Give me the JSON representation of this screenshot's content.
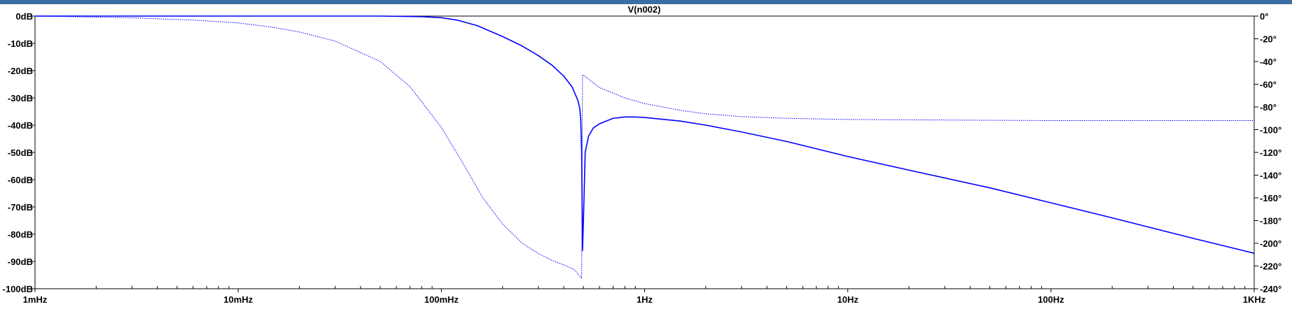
{
  "colors": {
    "trace": "#0000ff",
    "axis": "#000000",
    "background": "#ffffff",
    "frame": "#3a6ea5"
  },
  "chart_data": {
    "type": "line",
    "title": "V(n002)",
    "x_scale": "log",
    "xlim": [
      0.001,
      1000
    ],
    "x_ticks": [
      {
        "value": 0.001,
        "label": "1mHz"
      },
      {
        "value": 0.01,
        "label": "10mHz"
      },
      {
        "value": 0.1,
        "label": "100mHz"
      },
      {
        "value": 1,
        "label": "1Hz"
      },
      {
        "value": 10,
        "label": "10Hz"
      },
      {
        "value": 100,
        "label": "100Hz"
      },
      {
        "value": 1000,
        "label": "1KHz"
      }
    ],
    "ylim_left": [
      -100,
      0
    ],
    "y_ticks_left": [
      {
        "value": 0,
        "label": "0dB"
      },
      {
        "value": -10,
        "label": "-10dB"
      },
      {
        "value": -20,
        "label": "-20dB"
      },
      {
        "value": -30,
        "label": "-30dB"
      },
      {
        "value": -40,
        "label": "-40dB"
      },
      {
        "value": -50,
        "label": "-50dB"
      },
      {
        "value": -60,
        "label": "-60dB"
      },
      {
        "value": -70,
        "label": "-70dB"
      },
      {
        "value": -80,
        "label": "-80dB"
      },
      {
        "value": -90,
        "label": "-90dB"
      },
      {
        "value": -100,
        "label": "-100dB"
      }
    ],
    "ylim_right": [
      -240,
      0
    ],
    "y_ticks_right": [
      {
        "value": 0,
        "label": "0°"
      },
      {
        "value": -20,
        "label": "-20°"
      },
      {
        "value": -40,
        "label": "-40°"
      },
      {
        "value": -60,
        "label": "-60°"
      },
      {
        "value": -80,
        "label": "-80°"
      },
      {
        "value": -100,
        "label": "-100°"
      },
      {
        "value": -120,
        "label": "-120°"
      },
      {
        "value": -140,
        "label": "-140°"
      },
      {
        "value": -160,
        "label": "-160°"
      },
      {
        "value": -180,
        "label": "-180°"
      },
      {
        "value": -200,
        "label": "-200°"
      },
      {
        "value": -220,
        "label": "-220°"
      },
      {
        "value": -240,
        "label": "-240°"
      }
    ],
    "grid": false,
    "series": [
      {
        "axis": "left",
        "style": "solid",
        "x": [
          0.001,
          0.01,
          0.05,
          0.08,
          0.1,
          0.12,
          0.15,
          0.2,
          0.25,
          0.3,
          0.35,
          0.4,
          0.44,
          0.47,
          0.48,
          0.485,
          0.49,
          0.495,
          0.5,
          0.51,
          0.53,
          0.56,
          0.6,
          0.7,
          0.8,
          0.9,
          1,
          1.5,
          2,
          3,
          5,
          10,
          20,
          50,
          100,
          200,
          500,
          1000
        ],
        "y": [
          0,
          0,
          0,
          -0.2,
          -0.6,
          -1.5,
          -3.5,
          -7.5,
          -11,
          -14.5,
          -18,
          -22,
          -26,
          -31,
          -34,
          -38,
          -50,
          -86,
          -75,
          -50,
          -44,
          -41,
          -39.5,
          -37.5,
          -37,
          -37,
          -37.2,
          -38.5,
          -40,
          -42.5,
          -46,
          -51.5,
          -56.5,
          -63,
          -68.5,
          -74,
          -81.5,
          -87
        ]
      },
      {
        "axis": "right",
        "style": "dotted",
        "x": [
          0.001,
          0.003,
          0.006,
          0.01,
          0.015,
          0.02,
          0.03,
          0.05,
          0.07,
          0.1,
          0.13,
          0.16,
          0.2,
          0.25,
          0.3,
          0.35,
          0.4,
          0.45,
          0.49,
          0.495,
          0.5,
          0.6,
          0.8,
          1,
          1.5,
          2,
          3,
          5,
          10,
          30,
          100,
          300,
          1000
        ],
        "y": [
          0,
          -1.5,
          -3.5,
          -6,
          -10,
          -14,
          -22,
          -40,
          -62,
          -98,
          -132,
          -160,
          -183,
          -200,
          -209,
          -215,
          -219,
          -223,
          -231,
          -52,
          -52,
          -63,
          -72,
          -77,
          -83,
          -86,
          -88.5,
          -90,
          -91,
          -91.5,
          -92,
          -92,
          -92
        ]
      }
    ]
  }
}
